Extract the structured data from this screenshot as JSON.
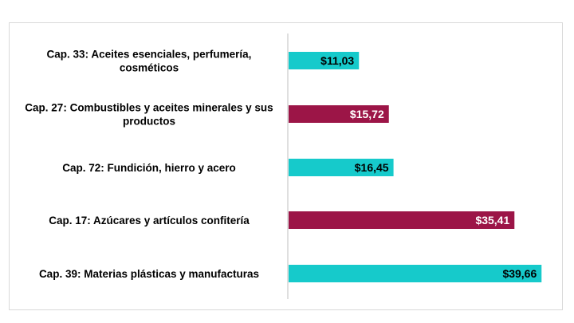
{
  "chart_data": {
    "type": "bar",
    "orientation": "horizontal",
    "categories": [
      [
        "Cap. 33: Aceites esenciales, perfumería,",
        "cosméticos"
      ],
      [
        "Cap. 27: Combustibles y aceites minerales y sus",
        "productos"
      ],
      [
        "Cap. 72: Fundición, hierro y acero"
      ],
      [
        "Cap. 17: Azúcares y artículos confitería"
      ],
      [
        "Cap. 39: Materias plásticas y manufacturas"
      ]
    ],
    "values": [
      11.03,
      15.72,
      16.45,
      35.41,
      39.66
    ],
    "value_labels": [
      "$11,03",
      "$15,72",
      "$16,45",
      "$35,41",
      "$39,66"
    ],
    "bar_colors": [
      "#16CACB",
      "#9C1547",
      "#16CACB",
      "#9C1547",
      "#16CACB"
    ],
    "label_colors": [
      "#000000",
      "#ffffff",
      "#000000",
      "#ffffff",
      "#000000"
    ],
    "xlim": [
      0,
      44
    ],
    "grid": false,
    "legend": false,
    "title": "",
    "xlabel": "",
    "ylabel": ""
  }
}
